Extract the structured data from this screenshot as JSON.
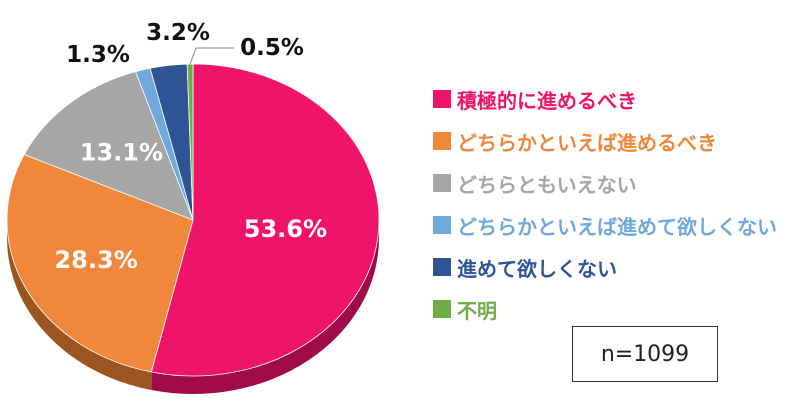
{
  "chart_data": {
    "type": "pie",
    "style": "3d-tilted",
    "start": "top",
    "direction": "clockwise",
    "slices": [
      {
        "label": "積極的に進めるべき",
        "value": 53.6,
        "text": "53.6%",
        "color": "#F0136A",
        "side_color": "#A10A48",
        "label_color": "#ffffff"
      },
      {
        "label": "どちらかといえば進めるべき",
        "value": 28.3,
        "text": "28.3%",
        "color": "#F0873A",
        "side_color": "#9C5420",
        "label_color": "#ffffff"
      },
      {
        "label": "どちらともいえない",
        "value": 13.1,
        "text": "13.1%",
        "color": "#A6A6A6",
        "side_color": "#6E6E6E",
        "label_color": "#ffffff"
      },
      {
        "label": "どちらかといえば進めて欲しくない",
        "value": 1.3,
        "text": "1.3%",
        "color": "#6FA8DC",
        "side_color": "#4574A0",
        "label_color": "#111111"
      },
      {
        "label": "進めて欲しくない",
        "value": 3.2,
        "text": "3.2%",
        "color": "#2F5496",
        "side_color": "#1C3563",
        "label_color": "#111111"
      },
      {
        "label": "不明",
        "value": 0.5,
        "text": "0.5%",
        "color": "#70AD47",
        "side_color": "#4A7A2E",
        "label_color": "#111111"
      }
    ],
    "legend": {
      "placement": "right"
    }
  },
  "note": "n=1099"
}
